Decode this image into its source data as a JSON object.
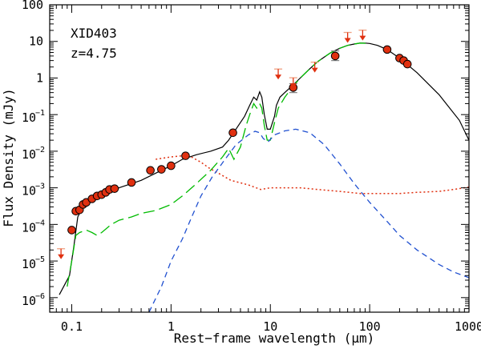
{
  "chart_data": {
    "type": "scatter",
    "title": "",
    "xlabel": "Rest−frame wavelength (μm)",
    "ylabel": "Flux Density (mJy)",
    "xscale": "log",
    "yscale": "log",
    "xlim": [
      0.06,
      1000
    ],
    "ylim": [
      4e-07,
      100
    ],
    "annotations": [
      "XID403",
      "z=4.75"
    ],
    "x_tick_labels": [
      "0.1",
      "1",
      "10",
      "100",
      "1000"
    ],
    "y_tick_labels": [
      {
        "base": "10",
        "exp": "−6"
      },
      {
        "base": "10",
        "exp": "−5"
      },
      {
        "base": "10",
        "exp": "−4"
      },
      {
        "base": "10",
        "exp": "−3"
      },
      {
        "base": "10",
        "exp": "−2"
      },
      {
        "base": "10",
        "exp": "−1"
      },
      {
        "base": "1",
        "exp": ""
      },
      {
        "base": "10",
        "exp": ""
      },
      {
        "base": "100",
        "exp": ""
      }
    ],
    "colors": {
      "total": "#000000",
      "starburst": "#00bb00",
      "stellar": "#e03010",
      "agn": "#2050d0",
      "points": "#e03010",
      "upper_limits": "#e03010",
      "errorbars": "#808080"
    },
    "series": [
      {
        "style": "solid",
        "color_key": "total",
        "x": [
          0.075,
          0.095,
          0.105,
          0.115,
          0.13,
          0.15,
          0.2,
          0.3,
          0.5,
          0.8,
          1.0,
          1.3,
          1.8,
          2.5,
          3.3,
          3.8,
          4.5,
          5.5,
          6.2,
          6.8,
          7.3,
          7.8,
          8.2,
          8.7,
          9.3,
          10.0,
          11.0,
          11.5,
          12.5,
          14,
          17,
          20,
          25,
          30,
          40,
          50,
          60,
          70,
          80,
          90,
          100,
          120,
          150,
          200,
          300,
          500,
          800,
          1000
        ],
        "y": [
          1.2e-06,
          4e-06,
          2.5e-05,
          0.00016,
          0.0003,
          0.0004,
          0.0006,
          0.001,
          0.0016,
          0.003,
          0.004,
          0.006,
          0.008,
          0.01,
          0.013,
          0.02,
          0.04,
          0.09,
          0.18,
          0.3,
          0.25,
          0.42,
          0.3,
          0.1,
          0.04,
          0.04,
          0.09,
          0.18,
          0.3,
          0.4,
          0.65,
          1.0,
          1.8,
          2.8,
          4.8,
          6.5,
          7.8,
          8.5,
          9.0,
          9.0,
          8.8,
          7.8,
          6.0,
          3.5,
          1.4,
          0.35,
          0.07,
          0.02
        ]
      },
      {
        "style": "long-dash",
        "color_key": "starburst",
        "x": [
          0.09,
          0.1,
          0.11,
          0.12,
          0.14,
          0.16,
          0.18,
          0.2,
          0.25,
          0.3,
          0.4,
          0.5,
          0.7,
          1.0,
          1.3,
          1.8,
          2.5,
          3.3,
          3.8,
          4.3,
          5.0,
          5.7,
          6.2,
          6.8,
          7.3,
          7.8,
          8.2,
          8.7,
          9.3,
          10.0,
          11.0,
          12.0,
          14,
          17,
          20,
          25,
          30,
          40,
          50,
          60,
          70,
          80,
          100
        ],
        "y": [
          2e-06,
          1e-05,
          5e-05,
          6e-05,
          7e-05,
          6e-05,
          5e-05,
          6e-05,
          0.0001,
          0.00013,
          0.00016,
          0.0002,
          0.00024,
          0.00035,
          0.0006,
          0.0013,
          0.003,
          0.007,
          0.012,
          0.006,
          0.013,
          0.05,
          0.1,
          0.2,
          0.15,
          0.2,
          0.15,
          0.05,
          0.02,
          0.02,
          0.06,
          0.15,
          0.3,
          0.6,
          1.0,
          1.8,
          2.8,
          4.8,
          6.5,
          7.8,
          8.5,
          9.0,
          8.8
        ]
      },
      {
        "style": "dotted",
        "color_key": "stellar",
        "x": [
          0.7,
          1.0,
          1.3,
          1.6,
          2.0,
          2.4,
          3.0,
          4.0,
          6.0,
          8.0,
          10,
          15,
          20,
          30,
          50,
          80,
          100,
          150,
          200,
          300,
          500,
          700,
          1000
        ],
        "y": [
          0.006,
          0.007,
          0.0075,
          0.007,
          0.005,
          0.0035,
          0.0025,
          0.0016,
          0.0012,
          0.0009,
          0.001,
          0.001,
          0.001,
          0.0009,
          0.0008,
          0.0007,
          0.0007,
          0.0007,
          0.0007,
          0.00075,
          0.0008,
          0.0009,
          0.00105
        ]
      },
      {
        "style": "dashed",
        "color_key": "agn",
        "x": [
          0.6,
          0.8,
          1.0,
          1.3,
          1.6,
          2.0,
          2.6,
          3.5,
          4.5,
          6.0,
          7.0,
          7.8,
          8.5,
          9.5,
          11,
          14,
          18,
          25,
          35,
          50,
          70,
          100,
          150,
          200,
          300,
          500,
          700,
          1000
        ],
        "y": [
          4e-07,
          2e-06,
          1e-05,
          4e-05,
          0.00015,
          0.0006,
          0.002,
          0.006,
          0.015,
          0.028,
          0.035,
          0.032,
          0.022,
          0.018,
          0.028,
          0.036,
          0.04,
          0.032,
          0.015,
          0.0045,
          0.0013,
          0.0004,
          0.00012,
          5e-05,
          2e-05,
          8e-06,
          5e-06,
          3.5e-06
        ]
      }
    ],
    "points": {
      "x": [
        0.1,
        0.11,
        0.12,
        0.13,
        0.14,
        0.16,
        0.18,
        0.2,
        0.22,
        0.24,
        0.27,
        0.4,
        0.62,
        0.8,
        1.0,
        1.4,
        4.2,
        17,
        45,
        150,
        200,
        220,
        240
      ],
      "y": [
        7e-05,
        0.00023,
        0.00025,
        0.00035,
        0.0004,
        0.0005,
        0.0006,
        0.00065,
        0.00075,
        0.0009,
        0.00095,
        0.0014,
        0.003,
        0.0032,
        0.004,
        0.0075,
        0.032,
        0.55,
        4.0,
        6.0,
        3.5,
        3.0,
        2.4
      ],
      "err_lo": [
        null,
        null,
        null,
        null,
        null,
        null,
        null,
        null,
        null,
        null,
        null,
        null,
        null,
        null,
        null,
        null,
        null,
        0.4,
        3.0,
        null,
        null,
        null,
        null
      ],
      "err_hi": [
        null,
        null,
        null,
        null,
        null,
        null,
        null,
        null,
        null,
        null,
        null,
        null,
        null,
        null,
        null,
        null,
        null,
        0.7,
        5.5,
        null,
        null,
        null,
        null
      ]
    },
    "upper_limits": {
      "x": [
        0.078,
        12,
        17,
        28,
        60,
        85
      ],
      "y": [
        1.6e-05,
        1.3,
        0.75,
        2.0,
        13,
        15
      ]
    }
  }
}
